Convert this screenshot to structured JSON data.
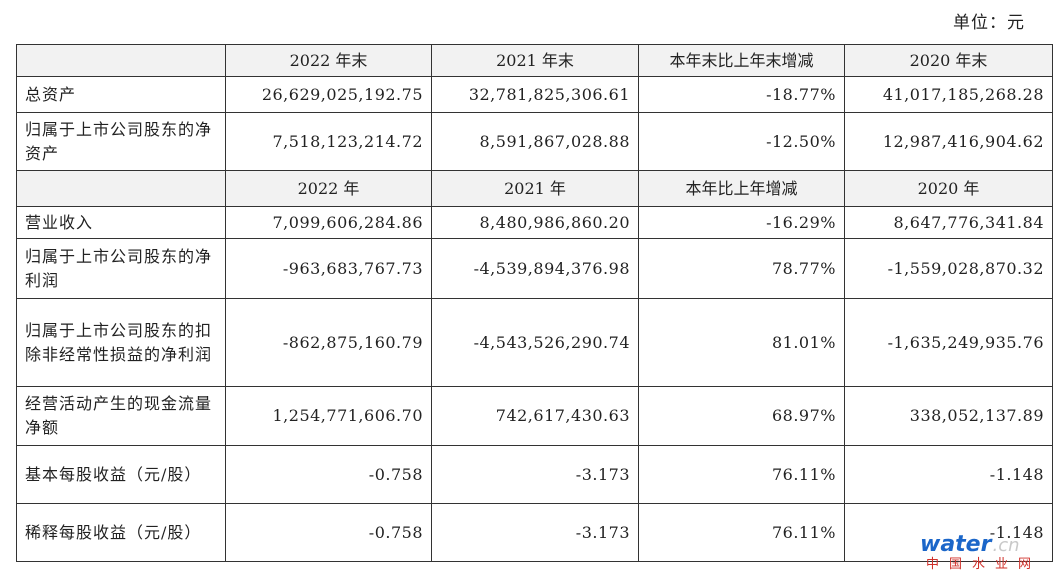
{
  "unit": "单位：元",
  "table": {
    "header1": [
      "2022 年末",
      "2021 年末",
      "本年末比上年末增减",
      "2020 年末"
    ],
    "header2": [
      "2022 年",
      "2021 年",
      "本年比上年增减",
      "2020 年"
    ],
    "rows": [
      {
        "label": "总资产",
        "values": [
          "26,629,025,192.75",
          "32,781,825,306.61",
          "-18.77%",
          "41,017,185,268.28"
        ]
      },
      {
        "label": "归属于上市公司股东的净资产",
        "values": [
          "7,518,123,214.72",
          "8,591,867,028.88",
          "-12.50%",
          "12,987,416,904.62"
        ]
      },
      {
        "label": "营业收入",
        "values": [
          "7,099,606,284.86",
          "8,480,986,860.20",
          "-16.29%",
          "8,647,776,341.84"
        ]
      },
      {
        "label": "归属于上市公司股东的净利润",
        "values": [
          "-963,683,767.73",
          "-4,539,894,376.98",
          "78.77%",
          "-1,559,028,870.32"
        ]
      },
      {
        "label": "归属于上市公司股东的扣除非经常性损益的净利润",
        "values": [
          "-862,875,160.79",
          "-4,543,526,290.74",
          "81.01%",
          "-1,635,249,935.76"
        ]
      },
      {
        "label": "经营活动产生的现金流量净额",
        "values": [
          "1,254,771,606.70",
          "742,617,430.63",
          "68.97%",
          "338,052,137.89"
        ]
      },
      {
        "label": "基本每股收益（元/股）",
        "values": [
          "-0.758",
          "-3.173",
          "76.11%",
          "-1.148"
        ]
      },
      {
        "label": "稀释每股收益（元/股）",
        "values": [
          "-0.758",
          "-3.173",
          "76.11%",
          "-1.148"
        ]
      }
    ]
  },
  "watermark": {
    "brand": "water",
    "domain": ".cn",
    "cn": "中国水业网"
  }
}
